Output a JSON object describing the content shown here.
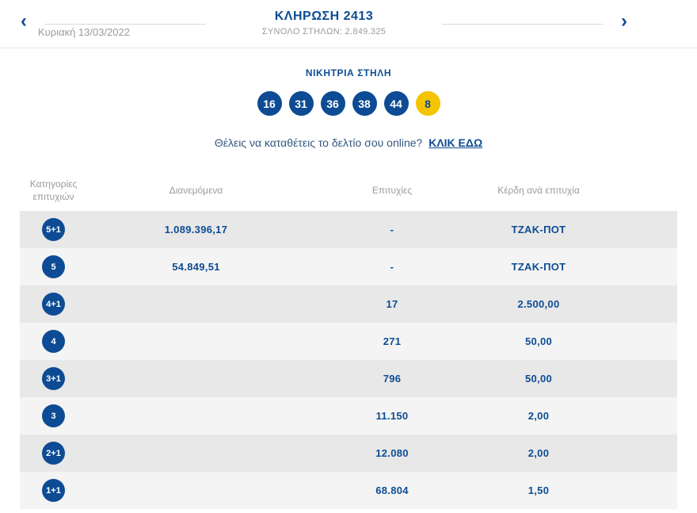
{
  "header": {
    "title": "ΚΛΗΡΩΣΗ 2413",
    "subtitle": "ΣΥΝΟΛΟ ΣΤΗΛΩΝ: 2.849.325",
    "date": "Κυριακή 13/03/2022",
    "prev_icon": "‹",
    "next_icon": "›"
  },
  "winning": {
    "title": "ΝΙΚΗΤΡΙΑ ΣΤΗΛΗ",
    "numbers": [
      "16",
      "31",
      "36",
      "38",
      "44"
    ],
    "joker": "8"
  },
  "online": {
    "text": "Θέλεις να καταθέτεις το δελτίο σου online?",
    "link_label": "ΚΛΙΚ ΕΔΩ"
  },
  "table": {
    "headers": {
      "category": "Κατηγορίες επιτυχιών",
      "distributed": "Διανεμόμενα",
      "wins": "Επιτυχίες",
      "prize": "Κέρδη ανά επιτυχία"
    },
    "rows": [
      {
        "category": "5+1",
        "distributed": "1.089.396,17",
        "wins": "-",
        "prize": "ΤΖΑΚ-ΠΟΤ"
      },
      {
        "category": "5",
        "distributed": "54.849,51",
        "wins": "-",
        "prize": "ΤΖΑΚ-ΠΟΤ"
      },
      {
        "category": "4+1",
        "distributed": "",
        "wins": "17",
        "prize": "2.500,00"
      },
      {
        "category": "4",
        "distributed": "",
        "wins": "271",
        "prize": "50,00"
      },
      {
        "category": "3+1",
        "distributed": "",
        "wins": "796",
        "prize": "50,00"
      },
      {
        "category": "3",
        "distributed": "",
        "wins": "11.150",
        "prize": "2,00"
      },
      {
        "category": "2+1",
        "distributed": "",
        "wins": "12.080",
        "prize": "2,00"
      },
      {
        "category": "1+1",
        "distributed": "",
        "wins": "68.804",
        "prize": "1,50"
      }
    ]
  },
  "colors": {
    "brand_blue": "#0d4c94",
    "joker_yellow": "#f5c400",
    "gray_text": "#9b9b9b",
    "row_gray_dark": "#e8e8e8",
    "row_gray_light": "#f4f4f4"
  }
}
